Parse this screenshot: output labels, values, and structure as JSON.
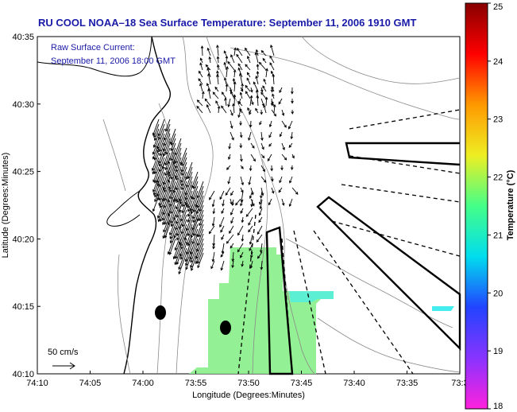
{
  "title": "RU COOL  NOAA–18  Sea Surface Temperature:  September 11, 2006 1910 GMT",
  "current_label_line1": "Raw Surface Current:",
  "current_label_line2": "September 11, 2006 18:00 GMT",
  "scale_label": "50 cm/s",
  "x_axis": {
    "label": "Longitude (Degrees:Minutes)",
    "ticks": [
      "74:10",
      "74:05",
      "74:00",
      "73:55",
      "73:50",
      "73:45",
      "73:40",
      "73:35",
      "73:3"
    ]
  },
  "y_axis": {
    "label": "Latitude (Degrees:Minutes)",
    "ticks": [
      "40:35",
      "40:30",
      "40:25",
      "40:20",
      "40:15",
      "40:10"
    ]
  },
  "colorbar": {
    "label": "Temperature (°C)",
    "ticks": [
      "25",
      "24",
      "23",
      "22",
      "21",
      "20",
      "19",
      "18"
    ],
    "colors": [
      "#ff22dd",
      "#8833ff",
      "#2244ff",
      "#00ddee",
      "#44ff88",
      "#eeee22",
      "#ff9900",
      "#ff0000",
      "#880000"
    ]
  },
  "sst_color": "#88ee88",
  "cyan_color": "#44eeee"
}
